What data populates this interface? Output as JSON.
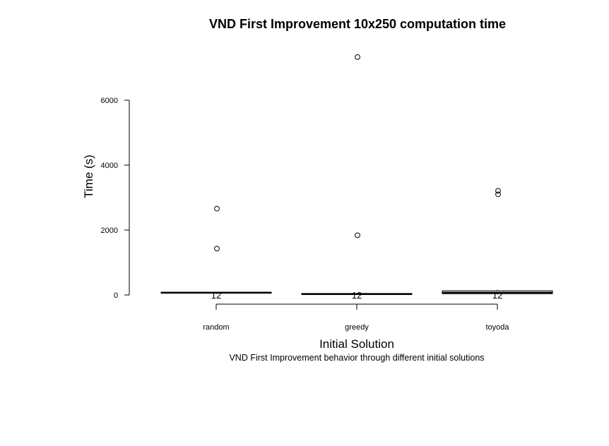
{
  "chart_data": {
    "type": "boxplot",
    "title": "VND First Improvement 10x250 computation time",
    "xlabel": "Initial Solution",
    "ylabel": "Time (s)",
    "subtitle": "VND First Improvement behavior through different initial solutions",
    "categories": [
      "random",
      "greedy",
      "toyoda"
    ],
    "y_ticks": [
      0,
      2000,
      4000,
      6000
    ],
    "ylim": [
      0,
      7300
    ],
    "grid": false,
    "boxes": [
      {
        "name": "random",
        "q1": 55,
        "median": 70,
        "q3": 85,
        "whisker_low": 40,
        "whisker_high": 100,
        "outliers": [
          1430,
          2660
        ],
        "count_label": "12"
      },
      {
        "name": "greedy",
        "q1": 15,
        "median": 30,
        "q3": 45,
        "whisker_low": 5,
        "whisker_high": 60,
        "outliers": [
          1840,
          7330
        ],
        "count_label": "12"
      },
      {
        "name": "toyoda",
        "q1": 40,
        "median": 70,
        "q3": 130,
        "whisker_low": 20,
        "whisker_high": 160,
        "outliers": [
          3100,
          3210
        ],
        "count_label": "12"
      }
    ]
  }
}
